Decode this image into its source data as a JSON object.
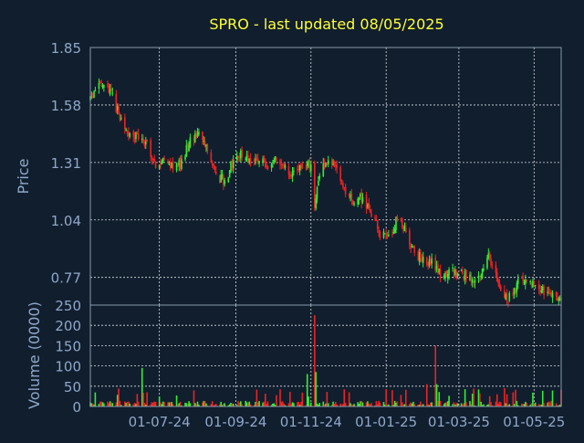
{
  "chart_data": {
    "type": "candlestick",
    "title": "SPRO - last updated 08/05/2025",
    "price_panel": {
      "ylabel": "Price",
      "ylim": [
        0.64,
        1.85
      ],
      "yticks": [
        0.77,
        1.04,
        1.31,
        1.58,
        1.85
      ],
      "ytick_labels": [
        "0.77",
        "1.04",
        "1.31",
        "1.58",
        "1.85"
      ]
    },
    "volume_panel": {
      "ylabel": "Volume (0000)",
      "ylim": [
        0,
        250
      ],
      "yticks": [
        0,
        50,
        100,
        150,
        200,
        250
      ],
      "ytick_labels": [
        "0",
        "50",
        "100",
        "150",
        "200",
        "250"
      ]
    },
    "x_axis": {
      "tick_labels": [
        "01-07-24",
        "01-09-24",
        "01-11-24",
        "01-01-25",
        "01-03-25",
        "01-05-25"
      ],
      "tick_dates": [
        "2024-07-01",
        "2024-09-01",
        "2024-11-01",
        "2025-01-01",
        "2025-03-01",
        "2025-05-01"
      ],
      "date_range": [
        "2024-05-06",
        "2025-05-23"
      ]
    },
    "price_anchors": [
      [
        "2024-05-06",
        1.6
      ],
      [
        "2024-05-10",
        1.65
      ],
      [
        "2024-05-17",
        1.68
      ],
      [
        "2024-05-24",
        1.62
      ],
      [
        "2024-05-31",
        1.5
      ],
      [
        "2024-06-07",
        1.44
      ],
      [
        "2024-06-14",
        1.43
      ],
      [
        "2024-06-21",
        1.4
      ],
      [
        "2024-06-28",
        1.3
      ],
      [
        "2024-07-05",
        1.33
      ],
      [
        "2024-07-12",
        1.28
      ],
      [
        "2024-07-19",
        1.31
      ],
      [
        "2024-07-26",
        1.42
      ],
      [
        "2024-08-02",
        1.44
      ],
      [
        "2024-08-09",
        1.38
      ],
      [
        "2024-08-16",
        1.25
      ],
      [
        "2024-08-23",
        1.22
      ],
      [
        "2024-08-30",
        1.32
      ],
      [
        "2024-09-06",
        1.36
      ],
      [
        "2024-09-13",
        1.32
      ],
      [
        "2024-09-20",
        1.33
      ],
      [
        "2024-09-27",
        1.3
      ],
      [
        "2024-10-04",
        1.33
      ],
      [
        "2024-10-11",
        1.28
      ],
      [
        "2024-10-18",
        1.25
      ],
      [
        "2024-10-25",
        1.28
      ],
      [
        "2024-11-01",
        1.3
      ],
      [
        "2024-11-04",
        1.1
      ],
      [
        "2024-11-08",
        1.27
      ],
      [
        "2024-11-15",
        1.3
      ],
      [
        "2024-11-22",
        1.28
      ],
      [
        "2024-11-29",
        1.17
      ],
      [
        "2024-12-06",
        1.13
      ],
      [
        "2024-12-13",
        1.14
      ],
      [
        "2024-12-20",
        1.08
      ],
      [
        "2024-12-27",
        0.98
      ],
      [
        "2025-01-03",
        0.95
      ],
      [
        "2025-01-10",
        1.05
      ],
      [
        "2025-01-17",
        0.98
      ],
      [
        "2025-01-24",
        0.88
      ],
      [
        "2025-01-31",
        0.86
      ],
      [
        "2025-02-07",
        0.84
      ],
      [
        "2025-02-14",
        0.78
      ],
      [
        "2025-02-21",
        0.8
      ],
      [
        "2025-02-28",
        0.79
      ],
      [
        "2025-03-07",
        0.78
      ],
      [
        "2025-03-14",
        0.76
      ],
      [
        "2025-03-21",
        0.8
      ],
      [
        "2025-03-25",
        0.88
      ],
      [
        "2025-04-01",
        0.76
      ],
      [
        "2025-04-07",
        0.66
      ],
      [
        "2025-04-14",
        0.7
      ],
      [
        "2025-04-21",
        0.78
      ],
      [
        "2025-04-28",
        0.74
      ],
      [
        "2025-05-05",
        0.72
      ],
      [
        "2025-05-12",
        0.7
      ],
      [
        "2025-05-19",
        0.66
      ],
      [
        "2025-05-23",
        0.64
      ]
    ],
    "volume_baseline": 8,
    "volume_spikes": [
      [
        "2024-06-17",
        95
      ],
      [
        "2024-06-21",
        35
      ],
      [
        "2024-07-01",
        25
      ],
      [
        "2024-10-29",
        80
      ],
      [
        "2024-11-04",
        225
      ],
      [
        "2024-11-05",
        85
      ],
      [
        "2024-12-02",
        35
      ],
      [
        "2025-01-06",
        40
      ],
      [
        "2025-02-03",
        55
      ],
      [
        "2025-02-10",
        150
      ],
      [
        "2025-02-11",
        55
      ],
      [
        "2025-04-01",
        30
      ],
      [
        "2025-04-07",
        45
      ],
      [
        "2025-04-09",
        30
      ],
      [
        "2025-04-14",
        35
      ]
    ],
    "colors": {
      "up": "#33ee33",
      "down": "#ee2222",
      "background": "#111e2e",
      "axes": "#8899aa",
      "grid": "#d8dde2",
      "title": "#ffff33",
      "text": "#8fa8c8"
    }
  }
}
